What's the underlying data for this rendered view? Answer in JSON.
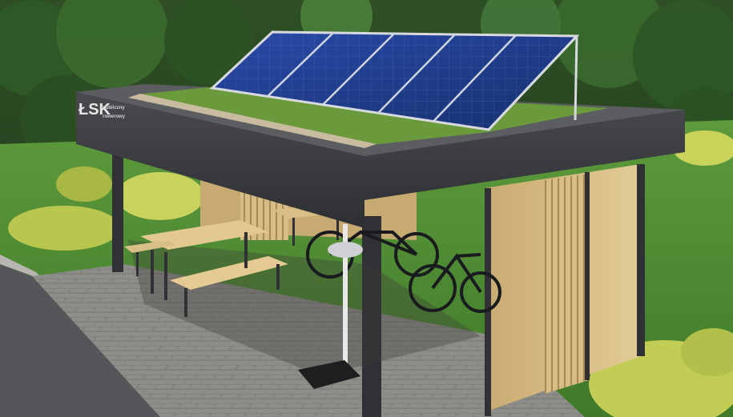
{
  "scene": {
    "description_free": true,
    "signage": {
      "logo": "ŁSK",
      "line1": "publiczny",
      "line2": "rowerowy"
    },
    "solar_panel_count": 5,
    "colors": {
      "forest_dark": "#1f3a1c",
      "forest_mid": "#3d6b2f",
      "lawn": "#4f8a35",
      "roof_fascia": "#3a3c40",
      "panel_blue": "#1e3a8a",
      "paving": "#8b8a86",
      "wood": "#d9c08a",
      "bush": "#c4cf5a"
    }
  }
}
